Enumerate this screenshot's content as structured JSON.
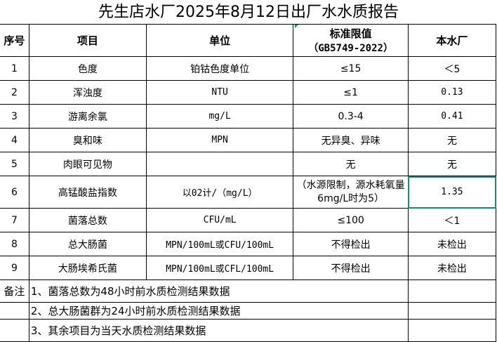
{
  "title": "先生店水厂2025年8月12日出厂水水质报告",
  "headers": [
    "序号",
    "项目",
    "单位",
    "标准限值",
    "（GB5749-2022）",
    "本水厂"
  ],
  "rows": [
    {
      "no": "1",
      "item": "色度",
      "unit": "铂钴色度单位",
      "limit": "≤15",
      "value": "＜5"
    },
    {
      "no": "2",
      "item": "浑浊度",
      "unit": "NTU",
      "limit": "≤1",
      "value": "0.13"
    },
    {
      "no": "3",
      "item": "游离余氯",
      "unit": "mg/L",
      "limit": "0.3-4",
      "value": "0.41"
    },
    {
      "no": "4",
      "item": "臭和味",
      "unit": "MPN",
      "limit": "无异臭、异味",
      "value": "无"
    },
    {
      "no": "5",
      "item": "肉眼可见物",
      "unit": "",
      "limit": "无",
      "value": "无"
    },
    {
      "no": "6",
      "item": "高锰酸盐指数",
      "unit": "以02计/（mg/L）",
      "limit": "（水源限制，源水耗氧量6mg/L时为5）",
      "value": "1.35"
    },
    {
      "no": "7",
      "item": "菌落总数",
      "unit": "CFU/mL",
      "limit": "≤100",
      "value": "＜1"
    },
    {
      "no": "8",
      "item": "总大肠菌",
      "unit": "MPN/100mL或CFU/100mL",
      "limit": "不得检出",
      "value": "未检出"
    },
    {
      "no": "9",
      "item": "大肠埃希氏菌",
      "unit": "MPN/100mL或CFL/100mL",
      "limit": "不得检出",
      "value": "未检出"
    }
  ],
  "notes": {
    "label": "备注",
    "lines": [
      "1、菌落总数为48小时前水质检测结果数据",
      "2、总大肠菌群为24小时前水质检测结果数据",
      "3、其余项目为当天水质检测结果数据"
    ]
  },
  "colors": {
    "selection": "#1e8f5a"
  }
}
